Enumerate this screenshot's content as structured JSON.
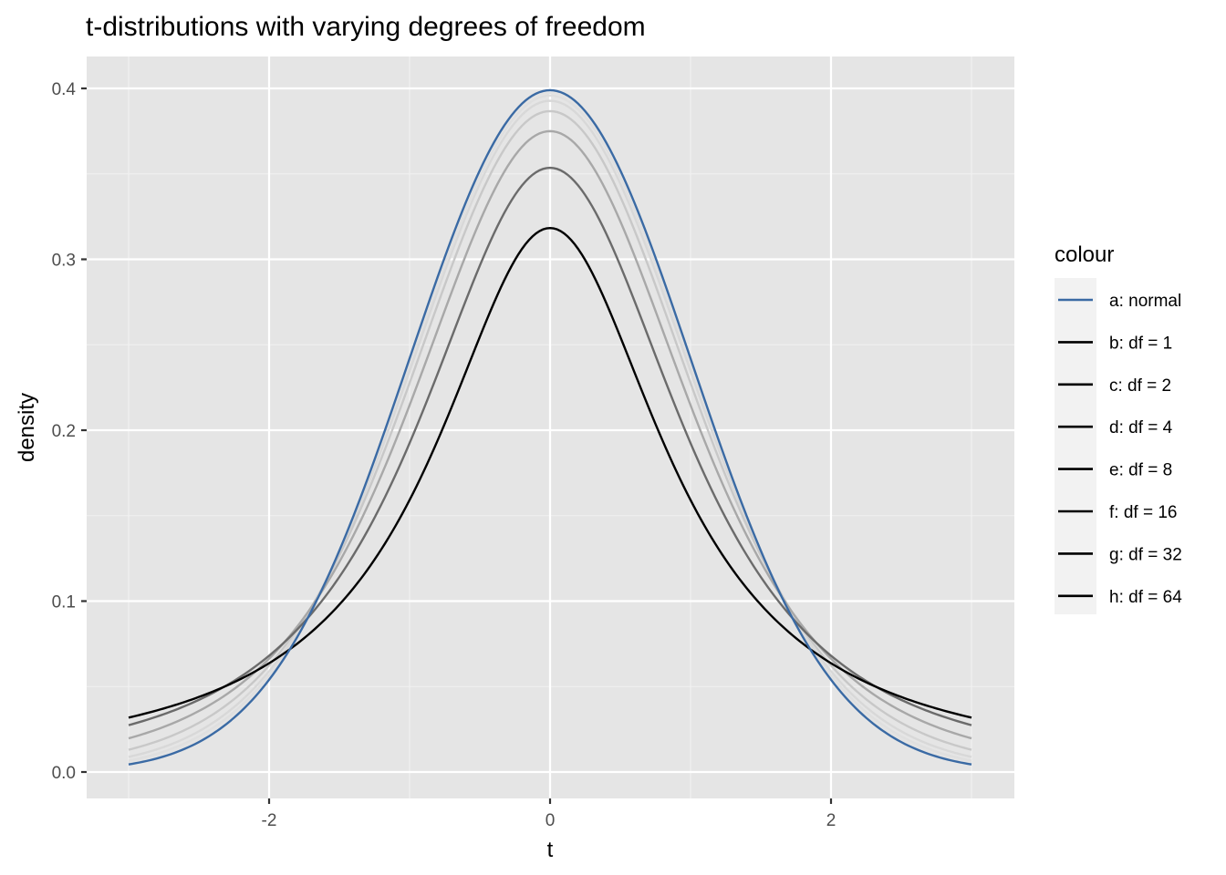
{
  "chart_data": {
    "type": "line",
    "title": "t-distributions with varying degrees of freedom",
    "xlabel": "t",
    "ylabel": "density",
    "xlim": [
      -3,
      3
    ],
    "ylim": [
      0,
      0.4
    ],
    "x_ticks": [
      -2,
      0,
      2
    ],
    "x_tick_labels": [
      "-2",
      "0",
      "2"
    ],
    "y_ticks": [
      0.0,
      0.1,
      0.2,
      0.3,
      0.4
    ],
    "y_tick_labels": [
      "0.0",
      "0.1",
      "0.2",
      "0.3",
      "0.4"
    ],
    "grid": true,
    "legend": {
      "title": "colour",
      "placement": "right",
      "entries": [
        "a: normal",
        "b: df = 1",
        "c: df = 2",
        "d: df = 4",
        "e: df = 8",
        "f: df = 16",
        "g: df = 32",
        "h: df = 64"
      ]
    },
    "series": [
      {
        "name": "a: normal",
        "distribution": "normal",
        "color": "#3a6aa4",
        "x": [
          -3,
          -2.5,
          -2,
          -1.5,
          -1,
          -0.5,
          0,
          0.5,
          1,
          1.5,
          2,
          2.5,
          3
        ],
        "values": [
          0.0044,
          0.0175,
          0.054,
          0.1295,
          0.242,
          0.3521,
          0.3989,
          0.3521,
          0.242,
          0.1295,
          0.054,
          0.0175,
          0.0044
        ]
      },
      {
        "name": "b: df = 1",
        "df": 1,
        "color": "#000000",
        "x": [
          -3,
          -2.5,
          -2,
          -1.5,
          -1,
          -0.5,
          0,
          0.5,
          1,
          1.5,
          2,
          2.5,
          3
        ],
        "values": [
          0.0318,
          0.0439,
          0.0637,
          0.0979,
          0.1592,
          0.2546,
          0.3183,
          0.2546,
          0.1592,
          0.0979,
          0.0637,
          0.0439,
          0.0318
        ]
      },
      {
        "name": "c: df = 2",
        "df": 2,
        "color": "#6b6b6b",
        "x": [
          -3,
          -2.5,
          -2,
          -1.5,
          -1,
          -0.5,
          0,
          0.5,
          1,
          1.5,
          2,
          2.5,
          3
        ],
        "values": [
          0.0274,
          0.0422,
          0.068,
          0.1134,
          0.1925,
          0.2962,
          0.3536,
          0.2962,
          0.1925,
          0.1134,
          0.068,
          0.0422,
          0.0274
        ]
      },
      {
        "name": "d: df = 4",
        "df": 4,
        "color": "#a8a8a8",
        "x": [
          -3,
          -2.5,
          -2,
          -1.5,
          -1,
          -0.5,
          0,
          0.5,
          1,
          1.5,
          2,
          2.5,
          3
        ],
        "values": [
          0.0197,
          0.0347,
          0.0663,
          0.1215,
          0.2147,
          0.3225,
          0.375,
          0.3225,
          0.2147,
          0.1215,
          0.0663,
          0.0347,
          0.0197
        ]
      },
      {
        "name": "e: df = 8",
        "df": 8,
        "color": "#c8c8c8",
        "x": [
          -3,
          -2.5,
          -2,
          -1.5,
          -1,
          -0.5,
          0,
          0.5,
          1,
          1.5,
          2,
          2.5,
          3
        ],
        "values": [
          0.0135,
          0.0274,
          0.0617,
          0.1244,
          0.2276,
          0.3375,
          0.3867,
          0.3375,
          0.2276,
          0.1244,
          0.0617,
          0.0274,
          0.0135
        ]
      },
      {
        "name": "f: df = 16",
        "df": 16,
        "color": "#d8d8d8",
        "x": [
          -3,
          -2.5,
          -2,
          -1.5,
          -1,
          -0.5,
          0,
          0.5,
          1,
          1.5,
          2,
          2.5,
          3
        ],
        "values": [
          0.009,
          0.0226,
          0.0583,
          0.127,
          0.2349,
          0.3448,
          0.3927,
          0.3448,
          0.2349,
          0.127,
          0.0583,
          0.0226,
          0.009
        ]
      },
      {
        "name": "g: df = 32",
        "df": 32,
        "color": "#dfdfdf",
        "x": [
          -3,
          -2.5,
          -2,
          -1.5,
          -1,
          -0.5,
          0,
          0.5,
          1,
          1.5,
          2,
          2.5,
          3
        ],
        "values": [
          0.0066,
          0.0199,
          0.0561,
          0.1282,
          0.2385,
          0.3485,
          0.3958,
          0.3485,
          0.2385,
          0.1282,
          0.0561,
          0.0199,
          0.0066
        ]
      },
      {
        "name": "h: df = 64",
        "df": 64,
        "color": "#e3e3e3",
        "x": [
          -3,
          -2.5,
          -2,
          -1.5,
          -1,
          -0.5,
          0,
          0.5,
          1,
          1.5,
          2,
          2.5,
          3
        ],
        "values": [
          0.0055,
          0.0187,
          0.055,
          0.1289,
          0.2403,
          0.3503,
          0.3974,
          0.3503,
          0.2403,
          0.1289,
          0.055,
          0.0187,
          0.0055
        ]
      }
    ]
  },
  "colors": {
    "panel_background": "#e5e5e5",
    "grid_major": "#ffffff",
    "grid_minor": "#f2f2f2",
    "legend_key_background": "#f2f2f2",
    "legend_key_line": "#000000",
    "tick_text": "#4d4d4d",
    "label_text": "#000000"
  }
}
